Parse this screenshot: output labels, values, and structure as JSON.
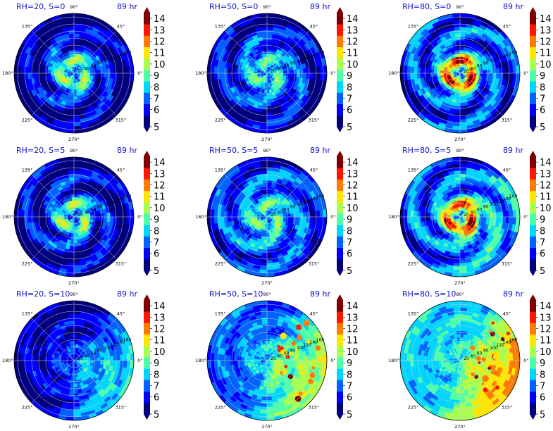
{
  "figure": {
    "angle_labels": [
      "0°",
      "45°",
      "90°",
      "135°",
      "180°",
      "225°",
      "270°",
      "315°"
    ],
    "radial_labels": [
      "20",
      "40",
      "60",
      "80",
      "100",
      "120",
      "140",
      "160"
    ],
    "colorbar_ticks": [
      "5",
      "6",
      "7",
      "8",
      "9",
      "10",
      "11",
      "12",
      "13",
      "14"
    ],
    "colormap": [
      "#00007f",
      "#0000ff",
      "#0063ff",
      "#00d5ff",
      "#4effa9",
      "#a9ff4e",
      "#ffe600",
      "#ff7a00",
      "#ff1600",
      "#7f0000"
    ]
  },
  "chart_data": [
    {
      "type": "heatmap",
      "projection": "polar",
      "title": "RH=20, S=0",
      "time": "89 hr",
      "rlim": [
        0,
        170
      ],
      "clim": [
        5,
        14.5
      ],
      "structure": "compact spiral core, values mostly 8-11, outer ring 5-6"
    },
    {
      "type": "heatmap",
      "projection": "polar",
      "title": "RH=50, S=0",
      "time": "89 hr",
      "rlim": [
        0,
        170
      ],
      "clim": [
        5,
        14.5
      ],
      "structure": "spiral bands, values mostly 8-10"
    },
    {
      "type": "heatmap",
      "projection": "polar",
      "title": "RH=80, S=0",
      "time": "89 hr",
      "rlim": [
        0,
        170
      ],
      "clim": [
        5,
        14.5
      ],
      "structure": "intense eyewall ring 12-14 near r=30, surrounding 7-9"
    },
    {
      "type": "heatmap",
      "projection": "polar",
      "title": "RH=20, S=5",
      "time": "89 hr",
      "rlim": [
        0,
        170
      ],
      "clim": [
        5,
        14.5
      ],
      "structure": "spiral core 8-11, scattered cells, outer 5-6"
    },
    {
      "type": "heatmap",
      "projection": "polar",
      "title": "RH=50, S=5",
      "time": "89 hr",
      "rlim": [
        0,
        170
      ],
      "clim": [
        5,
        14.5
      ],
      "structure": "broad spiral 8-10, central ring 9-10"
    },
    {
      "type": "heatmap",
      "projection": "polar",
      "title": "RH=80, S=5",
      "time": "89 hr",
      "rlim": [
        0,
        170
      ],
      "clim": [
        5,
        14.5
      ],
      "structure": "hook-shaped eyewall 12-14, cells 10-12 to southeast"
    },
    {
      "type": "heatmap",
      "projection": "polar",
      "title": "RH=20, S=10",
      "time": "89 hr",
      "rlim": [
        0,
        170
      ],
      "clim": [
        5,
        14.5
      ],
      "structure": "weak, convection displaced east 8-10, west 6-7"
    },
    {
      "type": "heatmap",
      "projection": "polar",
      "title": "RH=50, S=10",
      "time": "89 hr",
      "rlim": [
        0,
        170
      ],
      "clim": [
        5,
        14.5
      ],
      "structure": "asymmetric, cells 10-12 east-southeast, background 7-9"
    },
    {
      "type": "heatmap",
      "projection": "polar",
      "title": "RH=80, S=10",
      "time": "89 hr",
      "rlim": [
        0,
        170
      ],
      "clim": [
        5,
        14.5
      ],
      "structure": "warm background 8-10, strong cells 12-14 to east"
    }
  ]
}
